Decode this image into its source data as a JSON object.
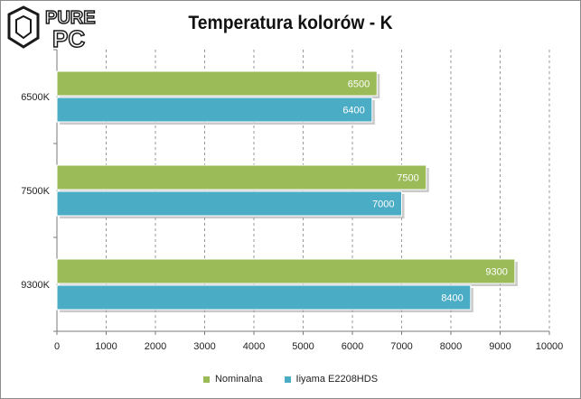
{
  "logo": {
    "text_top": "PURE",
    "text_bottom": "PC"
  },
  "colors": {
    "series1": "#9bbb59",
    "series2": "#4bacc6",
    "grid": "#9a9a9a",
    "axis": "#7a7a7a"
  },
  "chart_data": {
    "type": "bar",
    "orientation": "horizontal",
    "title": "Temperatura kolorów - K",
    "categories": [
      "6500K",
      "7500K",
      "9300K"
    ],
    "series": [
      {
        "name": "Nominalna",
        "values": [
          6500,
          7500,
          9300
        ]
      },
      {
        "name": "Iiyama E2208HDS",
        "values": [
          6400,
          7000,
          8400
        ]
      }
    ],
    "xlim": [
      0,
      10000
    ],
    "xticks": [
      0,
      1000,
      2000,
      3000,
      4000,
      5000,
      6000,
      7000,
      8000,
      9000,
      10000
    ],
    "grid": "vertical dashed",
    "legend_position": "bottom"
  }
}
